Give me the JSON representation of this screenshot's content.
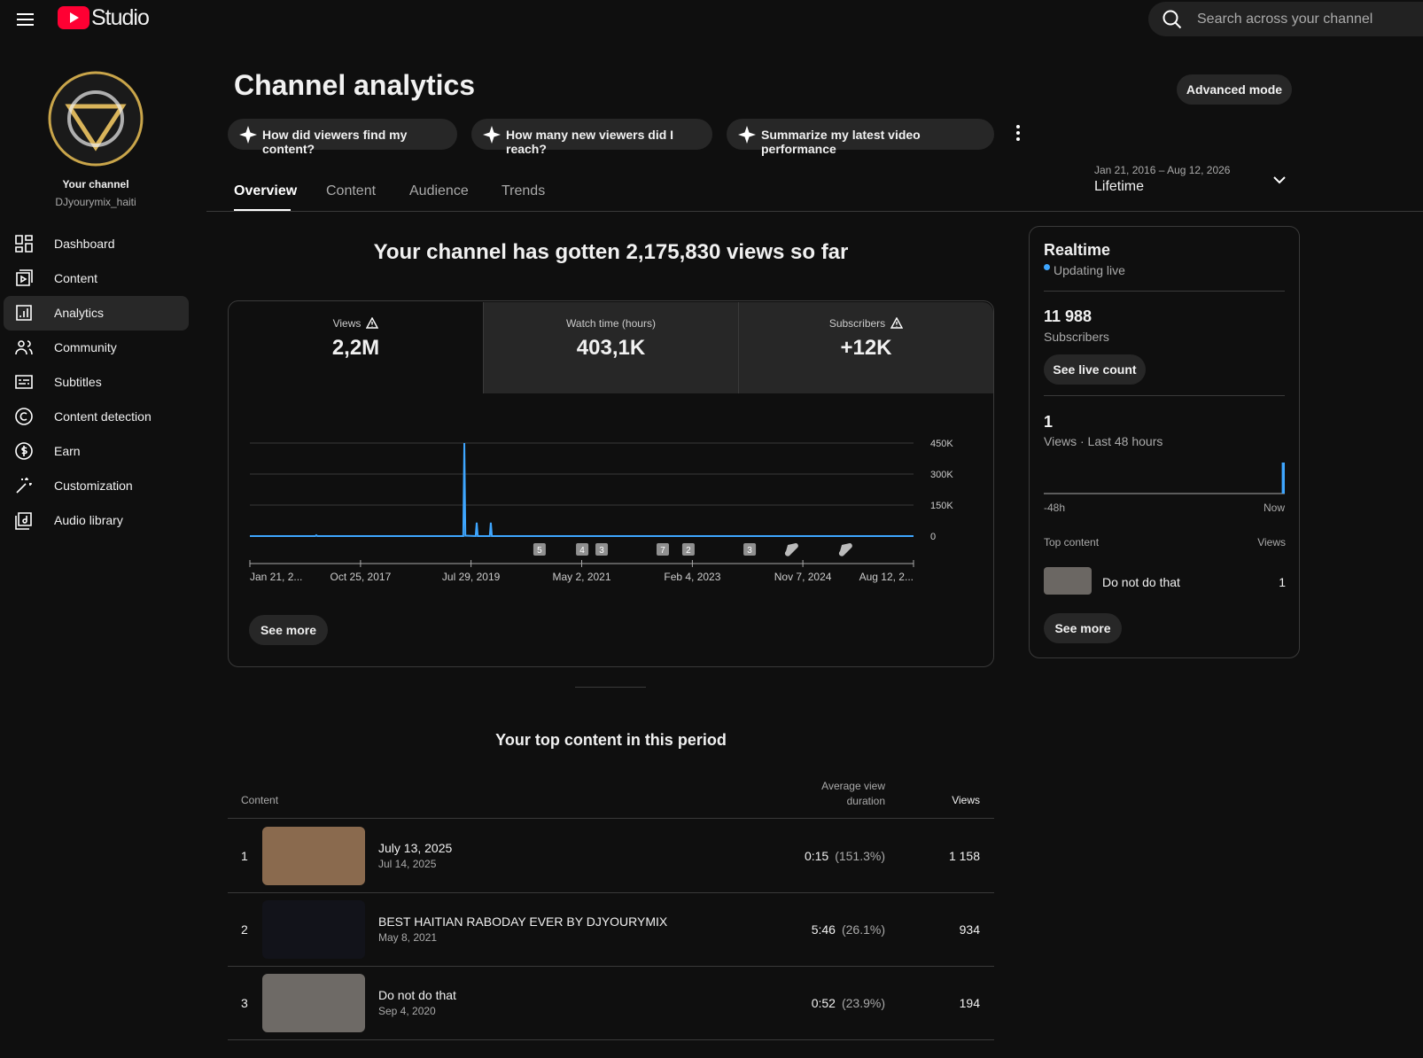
{
  "header": {
    "logo": "Studio",
    "search_placeholder": "Search across your channel"
  },
  "sidebar": {
    "channel_title": "Your channel",
    "channel_handle": "DJyourymix_haiti",
    "nav": [
      "Dashboard",
      "Content",
      "Analytics",
      "Community",
      "Subtitles",
      "Content detection",
      "Earn",
      "Customization",
      "Audio library"
    ],
    "active": 2
  },
  "page": {
    "title": "Channel analytics",
    "advanced_button": "Advanced mode",
    "prompts": [
      "How did viewers find my content?",
      "How many new viewers did I reach?",
      "Summarize my latest video performance"
    ],
    "tabs": [
      "Overview",
      "Content",
      "Audience",
      "Trends"
    ],
    "active_tab": 0,
    "date_range": "Jan 21, 2016 – Aug 12, 2026",
    "period": "Lifetime"
  },
  "summary": "Your channel has gotten 2,175,830 views so far",
  "metrics": [
    {
      "label": "Views",
      "value": "2,2M",
      "warning": true
    },
    {
      "label": "Watch time (hours)",
      "value": "403,1K",
      "warning": false
    },
    {
      "label": "Subscribers",
      "value": "+12K",
      "warning": true
    }
  ],
  "see_more": "See more",
  "chart_data": [
    {
      "type": "line",
      "color": "#3ea6ff",
      "grid": true,
      "x": [
        0,
        380,
        386,
        392,
        1240,
        1246,
        1252,
        1312,
        1318,
        1324,
        1394,
        1400,
        1406,
        3856
      ],
      "values": [
        0,
        0,
        4000,
        0,
        0,
        450000,
        2000,
        0,
        65000,
        0,
        0,
        65000,
        0,
        0
      ],
      "xlim": [
        0,
        3856
      ],
      "xticks": [
        {
          "value": 0,
          "label": "Jan 21, 2..."
        },
        {
          "value": 643,
          "label": "Oct 25, 2017"
        },
        {
          "value": 1285,
          "label": "Jul 29, 2019"
        },
        {
          "value": 1928,
          "label": "May 2, 2021"
        },
        {
          "value": 2571,
          "label": "Feb 4, 2023"
        },
        {
          "value": 3213,
          "label": "Nov 7, 2024"
        },
        {
          "value": 3856,
          "label": "Aug 12, 2..."
        }
      ],
      "ylim": [
        0,
        450000
      ],
      "yticks": [
        0,
        {
          "value": 150000,
          "label": "150K"
        },
        {
          "value": 300000,
          "label": "300K"
        },
        {
          "value": 450000,
          "label": "450K"
        }
      ],
      "markers": [
        {
          "x": 1683,
          "label": "5"
        },
        {
          "x": 1931,
          "label": "4"
        },
        {
          "x": 2044,
          "label": "3"
        },
        {
          "x": 2399,
          "label": "7"
        },
        {
          "x": 2548,
          "label": "2"
        },
        {
          "x": 2904,
          "label": "3"
        }
      ],
      "short_markers": [
        3151,
        3465
      ]
    },
    {
      "type": "bar",
      "color": "#3ea6ff",
      "x": [
        -1
      ],
      "values": [
        1
      ],
      "xlim": [
        -48,
        0
      ],
      "ylim": [
        0,
        1
      ],
      "xticks": [
        {
          "value": -48,
          "label": "-48h"
        },
        {
          "value": 0,
          "label": "Now"
        }
      ]
    }
  ],
  "realtime": {
    "title": "Realtime",
    "status": "Updating live",
    "subscribers": "11 988",
    "subscribers_label": "Subscribers",
    "live_count_button": "See live count",
    "views": "1",
    "views_label": "Views · Last 48 hours",
    "top_content_label": "Top content",
    "views_header": "Views",
    "top_item": {
      "title": "Do not do that",
      "views": "1"
    },
    "see_more": "See more"
  },
  "top_content": {
    "title": "Your top content in this period",
    "headers": [
      "Content",
      "Average view duration",
      "Views"
    ],
    "rows": [
      {
        "rank": "1",
        "title": "July 13, 2025",
        "date": "Jul 14, 2025",
        "duration": "0:15",
        "percent": "(151.3%)",
        "views": "1 158"
      },
      {
        "rank": "2",
        "title": "BEST HAITIAN RABODAY EVER BY DJYOURYMIX",
        "date": "May 8, 2021",
        "duration": "5:46",
        "percent": "(26.1%)",
        "views": "934"
      },
      {
        "rank": "3",
        "title": "Do not do that",
        "date": "Sep 4, 2020",
        "duration": "0:52",
        "percent": "(23.9%)",
        "views": "194"
      }
    ]
  }
}
